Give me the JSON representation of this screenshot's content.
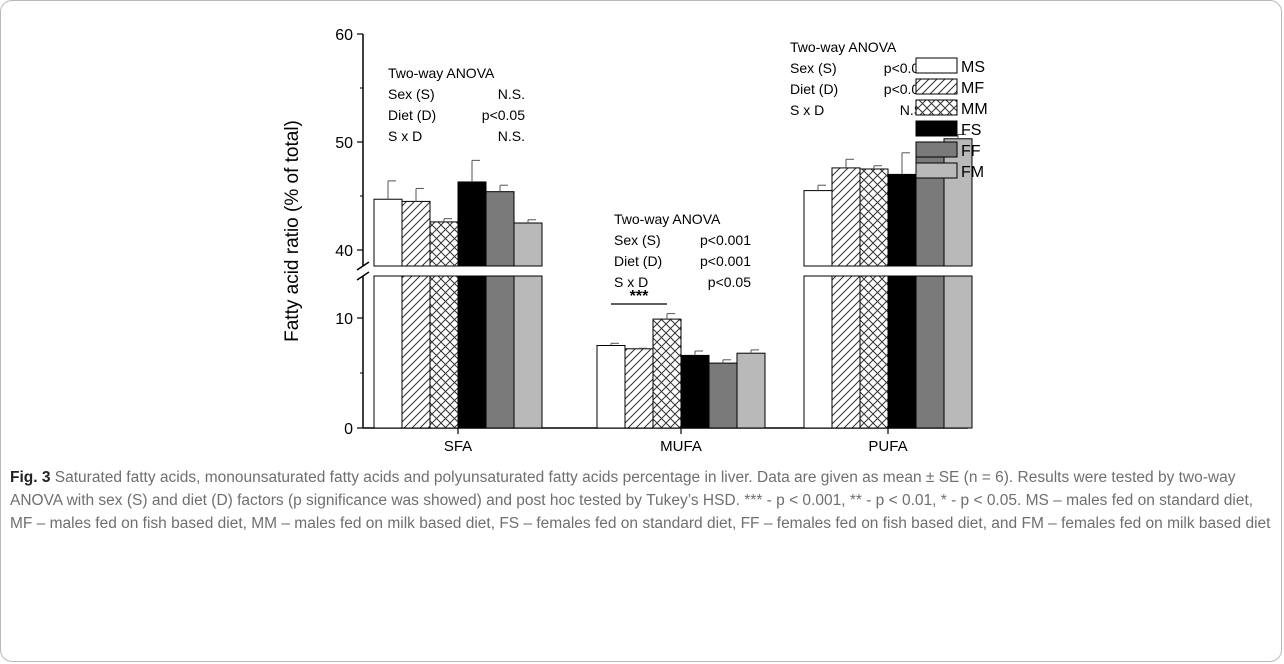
{
  "chart_data": {
    "type": "bar",
    "categories": [
      "SFA",
      "MUFA",
      "PUFA"
    ],
    "ylabel": "Fatty acid ratio (% of total)",
    "axis_break": true,
    "y_ticks_lower": [
      0,
      10
    ],
    "y_ticks_upper": [
      40,
      50,
      60
    ],
    "y_tick_labels": [
      "0",
      "10",
      "40",
      "50",
      "60"
    ],
    "series": [
      {
        "name": "MS",
        "pattern": "white",
        "values": [
          44.7,
          7.5,
          45.5
        ],
        "errors": [
          1.7,
          0.2,
          0.5
        ]
      },
      {
        "name": "MF",
        "pattern": "diagonal",
        "values": [
          44.5,
          7.2,
          47.6
        ],
        "errors": [
          1.2,
          0.05,
          0.8
        ]
      },
      {
        "name": "MM",
        "pattern": "crosshatch",
        "values": [
          42.6,
          9.9,
          47.5
        ],
        "errors": [
          0.3,
          0.5,
          0.3
        ]
      },
      {
        "name": "FS",
        "pattern": "black",
        "values": [
          46.3,
          6.6,
          47.0
        ],
        "errors": [
          2.0,
          0.4,
          2.0
        ]
      },
      {
        "name": "FF",
        "pattern": "darkgray",
        "values": [
          45.4,
          5.9,
          48.8
        ],
        "errors": [
          0.6,
          0.3,
          0.6
        ]
      },
      {
        "name": "FM",
        "pattern": "lightgray",
        "values": [
          42.5,
          6.8,
          50.3
        ],
        "errors": [
          0.3,
          0.3,
          0.4
        ]
      }
    ],
    "legend_position": "top-right",
    "annotations": [
      {
        "group": "SFA",
        "lines": [
          [
            "Two-way ANOVA",
            ""
          ],
          [
            "Sex (S)",
            "N.S."
          ],
          [
            "Diet (D)",
            "p<0.05"
          ],
          [
            "S x D",
            "N.S."
          ]
        ]
      },
      {
        "group": "MUFA",
        "lines": [
          [
            "Two-way ANOVA",
            ""
          ],
          [
            "Sex (S)",
            "p<0.001"
          ],
          [
            "Diet (D)",
            "p<0.001"
          ],
          [
            "S x D",
            "p<0.05"
          ]
        ]
      },
      {
        "group": "PUFA",
        "lines": [
          [
            "Two-way ANOVA",
            ""
          ],
          [
            "Sex (S)",
            "p<0.05"
          ],
          [
            "Diet (D)",
            "p<0.05"
          ],
          [
            "S x D",
            "N.S."
          ]
        ]
      }
    ],
    "significance": {
      "group": "MUFA",
      "from": "MS",
      "to": "MM",
      "label": "***"
    }
  },
  "caption": {
    "fig_label": "Fig. 3",
    "text": " Saturated fatty acids, monounsaturated fatty acids and polyunsaturated fatty acids percentage in liver. Data are given as mean ± SE (n = 6). Results were tested by two-way ANOVA with sex (S) and diet (D) factors (p significance was showed) and post hoc tested by Tukey’s HSD. *** - p < 0.001, ** - p < 0.01, * - p < 0.05. MS – males fed on standard diet, MF – males fed on fish based diet, MM – males fed on milk based diet, FS – females fed on standard diet, FF – females fed on fish based diet, and FM – females fed on milk based diet"
  }
}
